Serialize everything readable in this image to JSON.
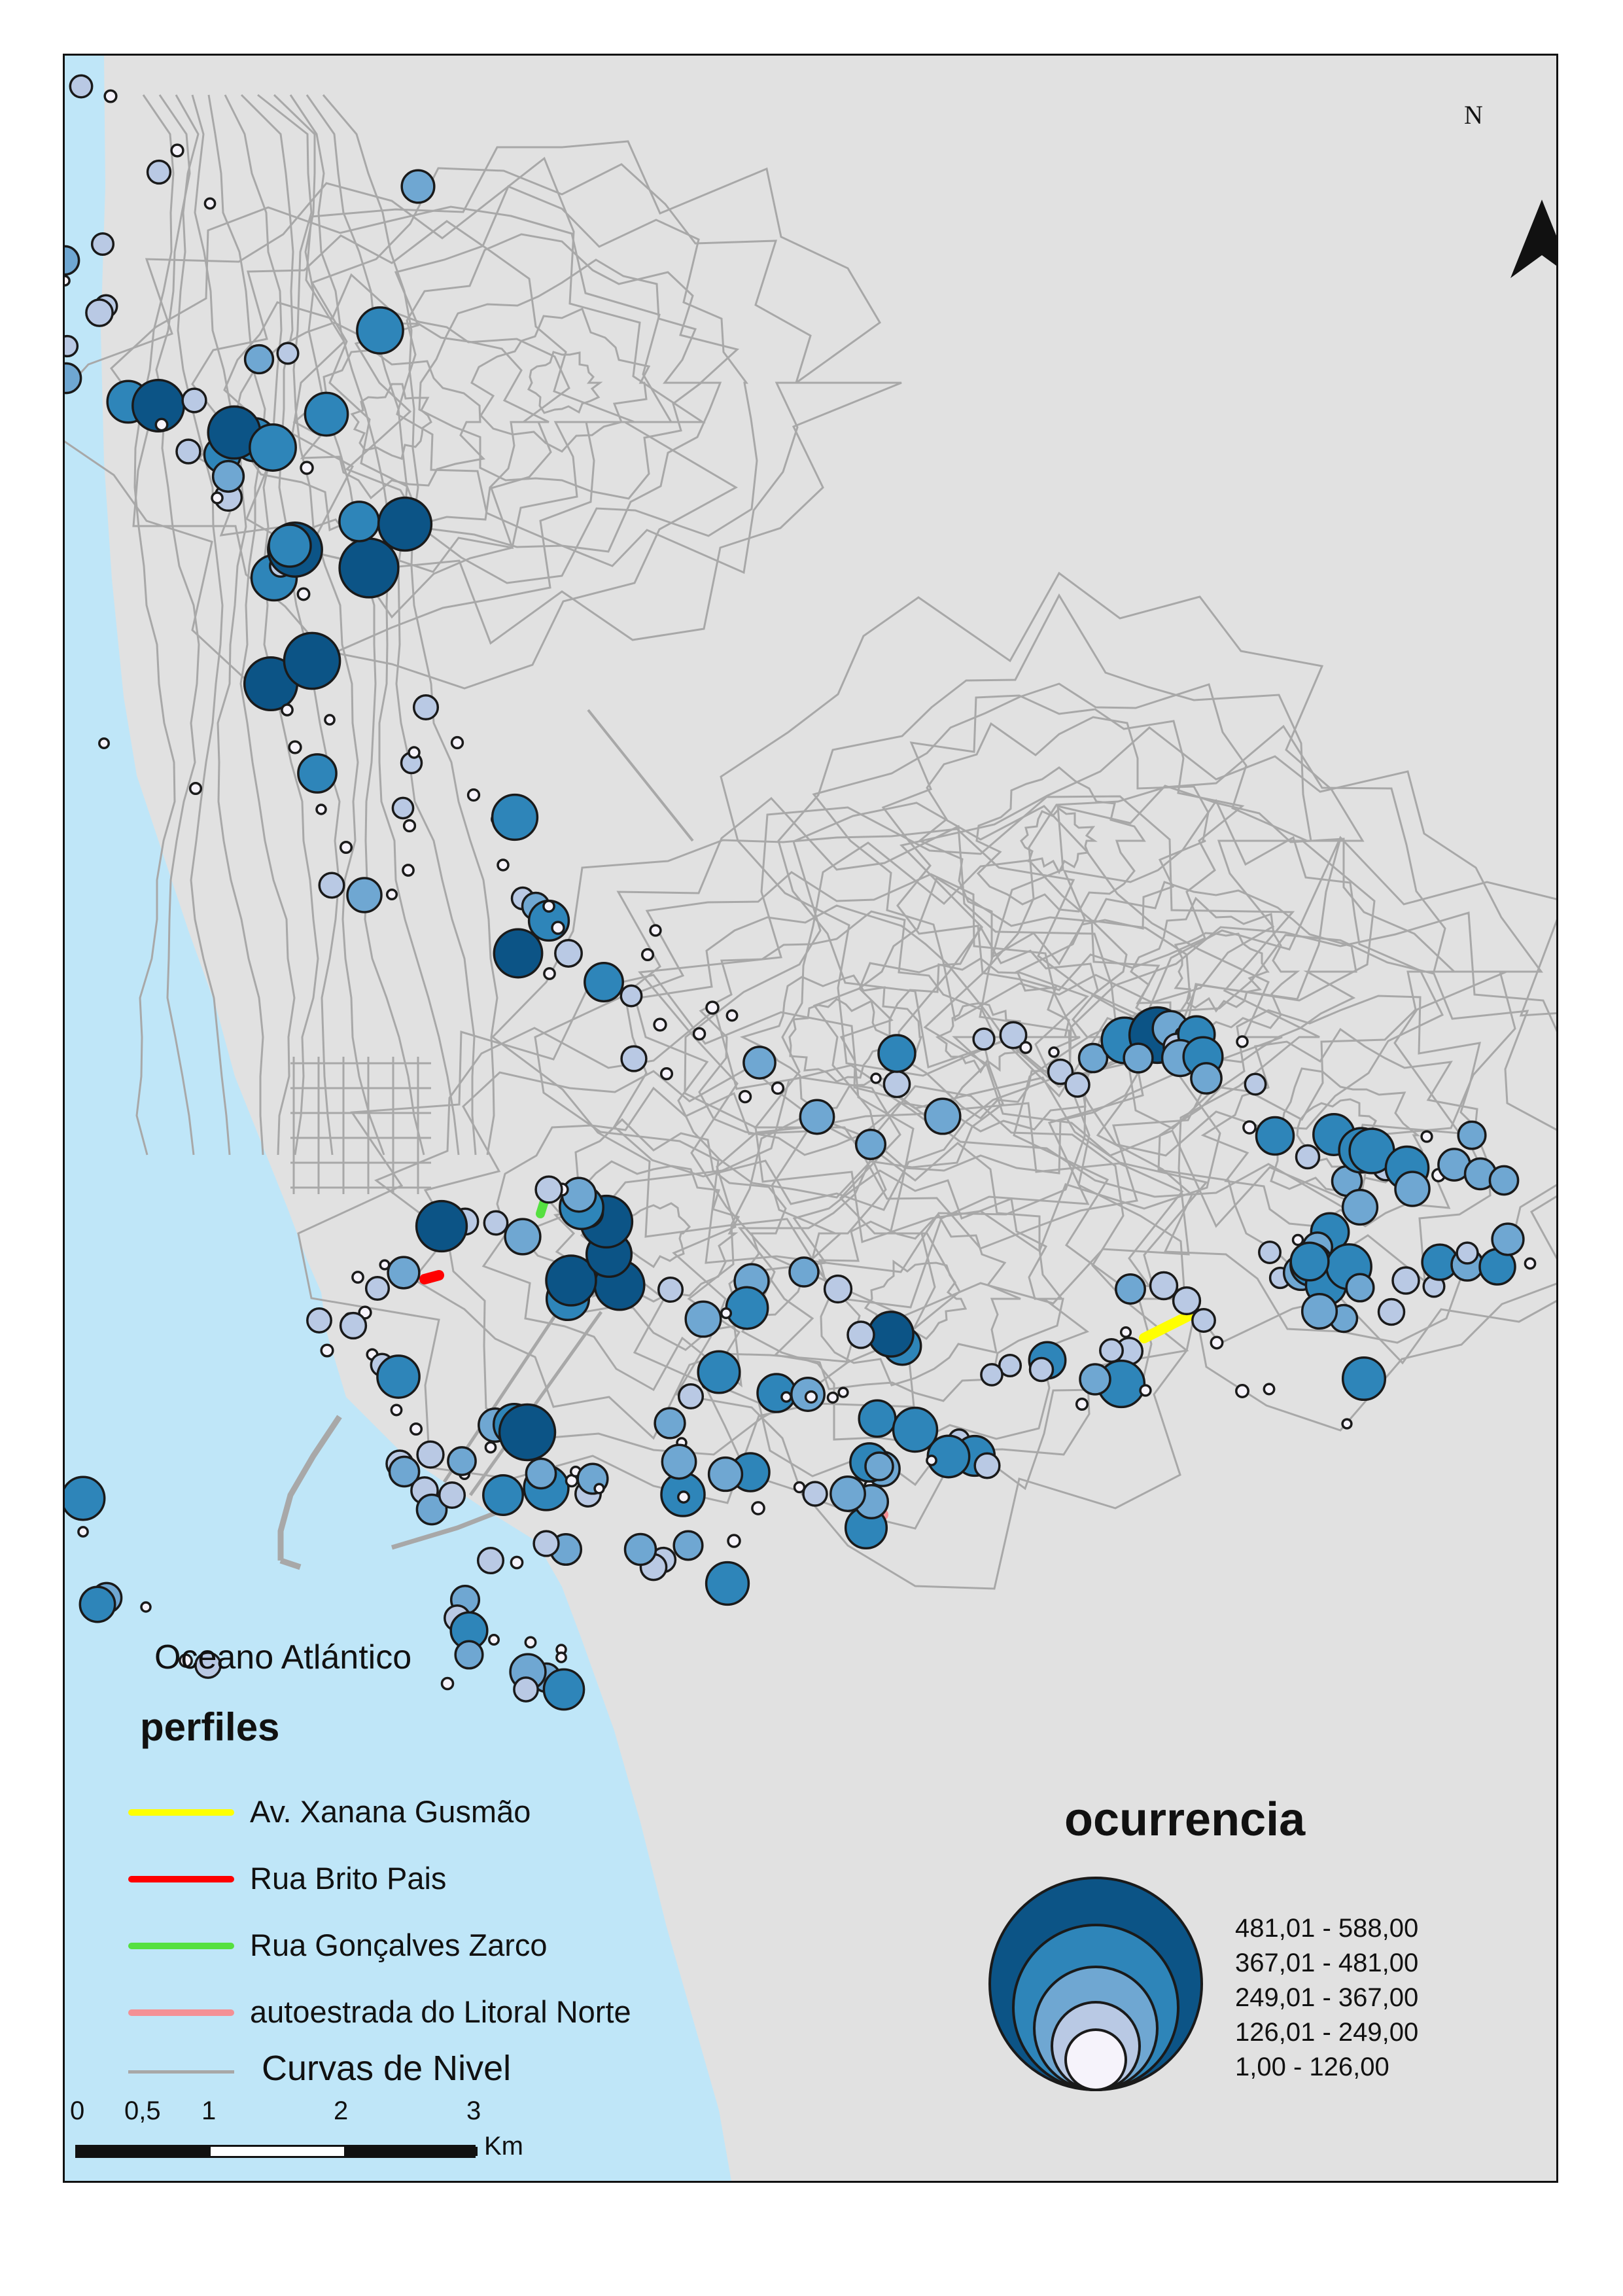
{
  "map": {
    "ocean_label": "Oceano Atlántico",
    "north_label": "N",
    "colors": {
      "land": "#e1e1e1",
      "ocean": "#bfe6f8",
      "contours": "#a8a8a8",
      "symbol_outline": "#1a1a1a"
    }
  },
  "perfiles": {
    "title": "perfiles",
    "items": [
      {
        "label": "Av. Xanana Gusmão",
        "color": "#ffff00"
      },
      {
        "label": "Rua Brito Pais",
        "color": "#ff0000"
      },
      {
        "label": "Rua Gonçalves Zarco",
        "color": "#55e040"
      },
      {
        "label": "autoestrada do Litoral Norte",
        "color": "#f49095"
      }
    ]
  },
  "curvas": {
    "label": "Curvas de Nivel",
    "color": "#a8a8a8"
  },
  "ocurrencia": {
    "title": "ocurrencia",
    "classes": [
      {
        "label": "481,01 - 588,00",
        "min": 481.01,
        "max": 588.0,
        "color": "#0c5486"
      },
      {
        "label": "367,01 - 481,00",
        "min": 367.01,
        "max": 481.0,
        "color": "#2e85b9"
      },
      {
        "label": "249,01 - 367,00",
        "min": 249.01,
        "max": 367.0,
        "color": "#6fa7d2"
      },
      {
        "label": "126,01 - 249,00",
        "min": 126.01,
        "max": 249.0,
        "color": "#b9c9e4"
      },
      {
        "label": "1,00 - 126,00",
        "min": 1.0,
        "max": 126.0,
        "color": "#f6f3fb"
      }
    ]
  },
  "scale_bar": {
    "unit": "Km",
    "labels": [
      "0",
      "0,5",
      "1",
      "2",
      "3"
    ],
    "values": [
      0,
      0.5,
      1,
      2,
      3
    ]
  }
}
